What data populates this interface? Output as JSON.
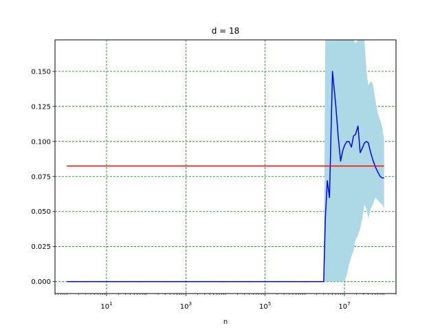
{
  "chart_data": {
    "type": "line",
    "title": "d = 18",
    "xlabel": "n",
    "ylabel": "",
    "xscale": "log",
    "xlim": [
      0.5,
      200000000
    ],
    "ylim": [
      -0.0085,
      0.1725
    ],
    "grid": true,
    "grid_style": "dashed-green",
    "x_ticks": [
      {
        "value": 10,
        "base": "10",
        "exp": "1"
      },
      {
        "value": 1000,
        "base": "10",
        "exp": "3"
      },
      {
        "value": 100000,
        "base": "10",
        "exp": "5"
      },
      {
        "value": 10000000,
        "base": "10",
        "exp": "7"
      }
    ],
    "y_ticks": [
      {
        "value": 0.0,
        "label": "0.000"
      },
      {
        "value": 0.025,
        "label": "0.025"
      },
      {
        "value": 0.05,
        "label": "0.050"
      },
      {
        "value": 0.075,
        "label": "0.075"
      },
      {
        "value": 0.1,
        "label": "0.100"
      },
      {
        "value": 0.125,
        "label": "0.125"
      },
      {
        "value": 0.15,
        "label": "0.150"
      }
    ],
    "series": [
      {
        "kind": "band",
        "color": "#add8e6",
        "x": [
          3000000,
          3300000,
          3700000,
          4200000,
          5000000,
          6000000,
          7000000,
          8000000,
          9000000,
          10000000,
          11500000,
          13000000,
          15000000,
          17000000,
          19000000,
          22000000,
          25000000,
          28000000,
          32000000,
          36000000,
          40000000,
          46000000,
          52000000,
          60000000,
          70000000,
          80000000,
          90000000,
          100000000
        ],
        "upper": [
          0.0,
          0.175,
          0.175,
          0.175,
          0.175,
          0.175,
          0.175,
          0.175,
          0.175,
          0.175,
          0.175,
          0.175,
          0.175,
          0.175,
          0.17,
          0.175,
          0.175,
          0.175,
          0.175,
          0.15,
          0.14,
          0.143,
          0.141,
          0.13,
          0.12,
          0.115,
          0.11,
          0.102
        ],
        "lower": [
          0.0,
          0.0,
          0.0,
          0.0,
          0.0,
          0.0,
          0.0,
          0.0,
          0.0,
          0.0,
          0.005,
          0.012,
          0.018,
          0.022,
          0.03,
          0.033,
          0.038,
          0.045,
          0.055,
          0.052,
          0.045,
          0.052,
          0.055,
          0.06,
          0.058,
          0.056,
          0.055,
          0.052
        ]
      },
      {
        "kind": "line",
        "color": "#0000ff",
        "x": [
          1,
          3000000,
          3300000,
          3700000,
          4200000,
          5000000,
          6000000,
          7000000,
          8000000,
          9000000,
          10000000,
          11500000,
          13000000,
          15000000,
          17000000,
          19000000,
          22000000,
          25000000,
          28000000,
          32000000,
          36000000,
          40000000,
          46000000,
          52000000,
          60000000,
          70000000,
          80000000,
          90000000,
          100000000
        ],
        "y": [
          0.0,
          0.0,
          0.045,
          0.072,
          0.06,
          0.15,
          0.127,
          0.103,
          0.086,
          0.093,
          0.097,
          0.1,
          0.1,
          0.096,
          0.104,
          0.105,
          0.111,
          0.092,
          0.095,
          0.099,
          0.1,
          0.099,
          0.092,
          0.087,
          0.082,
          0.078,
          0.075,
          0.074,
          0.074
        ]
      },
      {
        "kind": "line",
        "color": "#ff0000",
        "x": [
          1,
          100000000
        ],
        "y": [
          0.0825,
          0.0825
        ]
      }
    ]
  }
}
